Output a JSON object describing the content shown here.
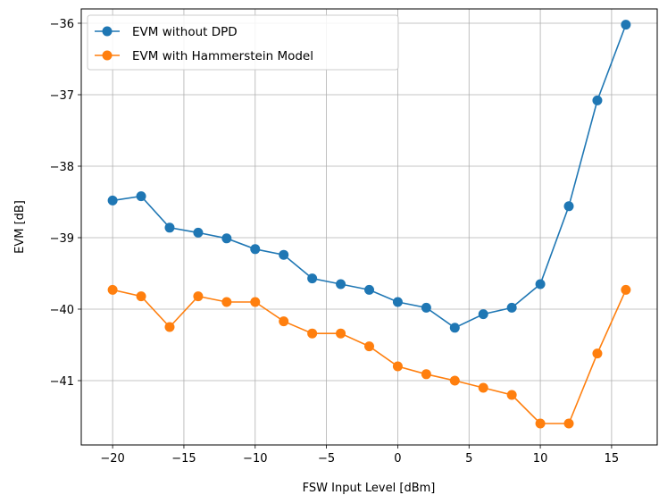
{
  "chart_data": {
    "type": "line",
    "title": "",
    "xlabel": "FSW Input Level [dBm]",
    "ylabel": "EVM [dB]",
    "xlim": [
      -22.2,
      18.2
    ],
    "ylim": [
      -41.9,
      -35.8
    ],
    "xticks": [
      -20,
      -15,
      -10,
      -5,
      0,
      5,
      10,
      15
    ],
    "yticks": [
      -41,
      -40,
      -39,
      -38,
      -37,
      -36
    ],
    "xtick_labels": [
      "−20",
      "−15",
      "−10",
      "−5",
      "0",
      "5",
      "10",
      "15"
    ],
    "ytick_labels": [
      "−41",
      "−40",
      "−39",
      "−38",
      "−37",
      "−36"
    ],
    "grid": true,
    "legend_position": "top-left",
    "x": [
      -20,
      -18,
      -16,
      -14,
      -12,
      -10,
      -8,
      -6,
      -4,
      -2,
      0,
      2,
      4,
      6,
      8,
      10,
      12,
      14,
      16
    ],
    "series": [
      {
        "name": "EVM without DPD",
        "color": "#1f77b4",
        "values": [
          -38.48,
          -38.42,
          -38.86,
          -38.93,
          -39.01,
          -39.16,
          -39.24,
          -39.57,
          -39.65,
          -39.73,
          -39.9,
          -39.98,
          -40.26,
          -40.07,
          -39.98,
          -39.65,
          -38.56,
          -37.08,
          -36.02
        ]
      },
      {
        "name": "EVM with Hammerstein Model",
        "color": "#ff7f0e",
        "values": [
          -39.73,
          -39.82,
          -40.25,
          -39.82,
          -39.9,
          -39.9,
          -40.17,
          -40.34,
          -40.34,
          -40.52,
          -40.8,
          -40.91,
          -41.0,
          -41.1,
          -41.2,
          -41.6,
          -41.6,
          -40.62,
          -39.73
        ]
      }
    ]
  }
}
